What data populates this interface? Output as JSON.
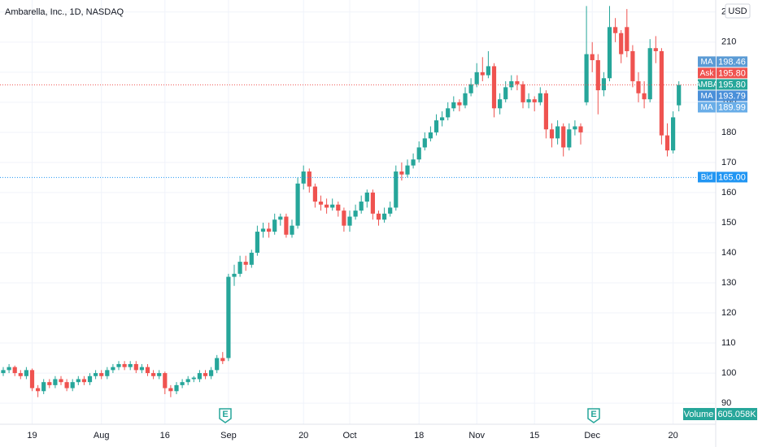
{
  "chart_data": {
    "type": "candlestick",
    "title": "Ambarella, Inc., 1D, NASDAQ",
    "currency": "USD",
    "ylim": [
      83,
      224
    ],
    "yticks": [
      90,
      100,
      110,
      120,
      130,
      140,
      150,
      160,
      170,
      180,
      190,
      200,
      210,
      220
    ],
    "grid": true,
    "up_color": "#26a69a",
    "down_color": "#ef5350",
    "categories": [
      null,
      null,
      null,
      null,
      null,
      "19",
      null,
      null,
      null,
      null,
      null,
      null,
      null,
      null,
      null,
      null,
      null,
      "Aug",
      null,
      null,
      null,
      null,
      null,
      null,
      null,
      null,
      null,
      null,
      "16",
      null,
      null,
      null,
      null,
      null,
      null,
      null,
      null,
      null,
      null,
      "Sep",
      null,
      null,
      null,
      null,
      null,
      null,
      null,
      null,
      null,
      null,
      null,
      null,
      "20",
      null,
      null,
      null,
      null,
      null,
      null,
      null,
      "Oct",
      null,
      null,
      null,
      null,
      null,
      null,
      null,
      null,
      null,
      null,
      null,
      "18",
      null,
      null,
      null,
      null,
      null,
      null,
      null,
      null,
      null,
      "Nov",
      null,
      null,
      null,
      null,
      null,
      null,
      null,
      null,
      null,
      "15",
      null,
      null,
      null,
      null,
      null,
      null,
      null,
      null,
      null,
      "Dec",
      null,
      null,
      null,
      null,
      null,
      null,
      null,
      null,
      null,
      null,
      null,
      null,
      null,
      "20",
      null
    ],
    "ohlc": [
      [
        100,
        102,
        99,
        101
      ],
      [
        101,
        103,
        100,
        102
      ],
      [
        102,
        102.5,
        99,
        100
      ],
      [
        100,
        101,
        98,
        99
      ],
      [
        99,
        102,
        98,
        101
      ],
      [
        101,
        101.5,
        94,
        95
      ],
      [
        95,
        96,
        92,
        94
      ],
      [
        94,
        98,
        93,
        97
      ],
      [
        97,
        98,
        95,
        96
      ],
      [
        96,
        99,
        95,
        98
      ],
      [
        98,
        99,
        96,
        97
      ],
      [
        97,
        98,
        94,
        95
      ],
      [
        95,
        98,
        94,
        97
      ],
      [
        97,
        99,
        96,
        98
      ],
      [
        98,
        99,
        96,
        97
      ],
      [
        97,
        100,
        96,
        99
      ],
      [
        99,
        101,
        98,
        100
      ],
      [
        100,
        101,
        98,
        99
      ],
      [
        99,
        102,
        98,
        101
      ],
      [
        101,
        103,
        100,
        102
      ],
      [
        102,
        104,
        101,
        103
      ],
      [
        103,
        104,
        101,
        102
      ],
      [
        102,
        104,
        101,
        103
      ],
      [
        103,
        104,
        100,
        101
      ],
      [
        101,
        103,
        100,
        102
      ],
      [
        102,
        103,
        99,
        100
      ],
      [
        100,
        101,
        98,
        99
      ],
      [
        99,
        101,
        98,
        100
      ],
      [
        100,
        100.5,
        93,
        95
      ],
      [
        95,
        96,
        92,
        94
      ],
      [
        94,
        97,
        93,
        96
      ],
      [
        96,
        98,
        95,
        97
      ],
      [
        97,
        99,
        96,
        98
      ],
      [
        98,
        99,
        97,
        98.5
      ],
      [
        98,
        101,
        97,
        100
      ],
      [
        100,
        101,
        98,
        99
      ],
      [
        99,
        102,
        98,
        101
      ],
      [
        101,
        106,
        100,
        105
      ],
      [
        105,
        107,
        103,
        104
      ],
      [
        105,
        133,
        104,
        132
      ],
      [
        132,
        136,
        129,
        133
      ],
      [
        133,
        139,
        132,
        137
      ],
      [
        137,
        139,
        134,
        136
      ],
      [
        136,
        141,
        135,
        140
      ],
      [
        140,
        149,
        139,
        147
      ],
      [
        147,
        150,
        145,
        148
      ],
      [
        148,
        150,
        145,
        147
      ],
      [
        147,
        153,
        146,
        151
      ],
      [
        151,
        153,
        149,
        152
      ],
      [
        152,
        153,
        145,
        146
      ],
      [
        146,
        151,
        145,
        149
      ],
      [
        149,
        165,
        148,
        163
      ],
      [
        163,
        169,
        161,
        167
      ],
      [
        167,
        168,
        160,
        162
      ],
      [
        162,
        163,
        155,
        157
      ],
      [
        157,
        159,
        154,
        156
      ],
      [
        156,
        158,
        153,
        155
      ],
      [
        155,
        158,
        154,
        156
      ],
      [
        156,
        157,
        152,
        154
      ],
      [
        154,
        155,
        147,
        149
      ],
      [
        149,
        154,
        147,
        152
      ],
      [
        152,
        156,
        151,
        154
      ],
      [
        154,
        159,
        153,
        157
      ],
      [
        157,
        161,
        155,
        160
      ],
      [
        160,
        161,
        151,
        153
      ],
      [
        153,
        154,
        149,
        151
      ],
      [
        151,
        155,
        150,
        153
      ],
      [
        153,
        157,
        152,
        155
      ],
      [
        155,
        169,
        154,
        167
      ],
      [
        167,
        170,
        164,
        166
      ],
      [
        166,
        171,
        165,
        169
      ],
      [
        169,
        173,
        168,
        171
      ],
      [
        171,
        177,
        170,
        175
      ],
      [
        175,
        180,
        174,
        178
      ],
      [
        178,
        182,
        177,
        180
      ],
      [
        180,
        186,
        179,
        184
      ],
      [
        184,
        187,
        182,
        185
      ],
      [
        185,
        190,
        184,
        188
      ],
      [
        188,
        192,
        187,
        190
      ],
      [
        190,
        191,
        187,
        189
      ],
      [
        189,
        195,
        188,
        193
      ],
      [
        193,
        198,
        192,
        196
      ],
      [
        196,
        203,
        195,
        200
      ],
      [
        200,
        205,
        197,
        199
      ],
      [
        199,
        207,
        198,
        202
      ],
      [
        202,
        203,
        185,
        188
      ],
      [
        188,
        193,
        186,
        191
      ],
      [
        191,
        197,
        190,
        195
      ],
      [
        195,
        199,
        194,
        197
      ],
      [
        197,
        199,
        194,
        196
      ],
      [
        196,
        197,
        188,
        190
      ],
      [
        190,
        193,
        188,
        191
      ],
      [
        191,
        192,
        187,
        190
      ],
      [
        190,
        195,
        189,
        193
      ],
      [
        193,
        194,
        178,
        181
      ],
      [
        181,
        183,
        175,
        178
      ],
      [
        178,
        184,
        176,
        182
      ],
      [
        182,
        183,
        172,
        175
      ],
      [
        175,
        183,
        174,
        181
      ],
      [
        181,
        184,
        179,
        182
      ],
      [
        182,
        183,
        176,
        180
      ],
      [
        190,
        222,
        189,
        206
      ],
      [
        206,
        210,
        200,
        204
      ],
      [
        204,
        206,
        186,
        194
      ],
      [
        194,
        200,
        192,
        198
      ],
      [
        198,
        222,
        197,
        215
      ],
      [
        215,
        218,
        210,
        213
      ],
      [
        213,
        214,
        203,
        206
      ],
      [
        215,
        221,
        205,
        207
      ],
      [
        207,
        209,
        195,
        197
      ],
      [
        197,
        200,
        190,
        193
      ],
      [
        193,
        197,
        188,
        191
      ],
      [
        191,
        211,
        190,
        208
      ],
      [
        208,
        212,
        203,
        207
      ],
      [
        207,
        208,
        176,
        179
      ],
      [
        179,
        183,
        172,
        174
      ],
      [
        174,
        187,
        173,
        185
      ],
      [
        189,
        197,
        187,
        195.8
      ]
    ],
    "price_labels": [
      {
        "name": "MA",
        "value": 198.46,
        "value_label": "198.46",
        "color": "#5b9bd5"
      },
      {
        "name": "Ask",
        "value": 195.8,
        "value_label": "195.80",
        "color": "#ef5350",
        "line": true
      },
      {
        "name": "AMBA",
        "value": 195.8,
        "value_label": "195.80",
        "color": "#26a69a"
      },
      {
        "name": "MA",
        "value": 193.79,
        "value_label": "193.79",
        "color": "#4a90d9"
      },
      {
        "name": "MA",
        "value": 189.99,
        "value_label": "189.99",
        "color": "#6aaee8"
      },
      {
        "name": "Bid",
        "value": 165,
        "value_label": "165.00",
        "color": "#2196f3",
        "line": true
      }
    ],
    "volume": {
      "name": "Volume",
      "value": 605058,
      "value_label": "605.058K"
    }
  }
}
